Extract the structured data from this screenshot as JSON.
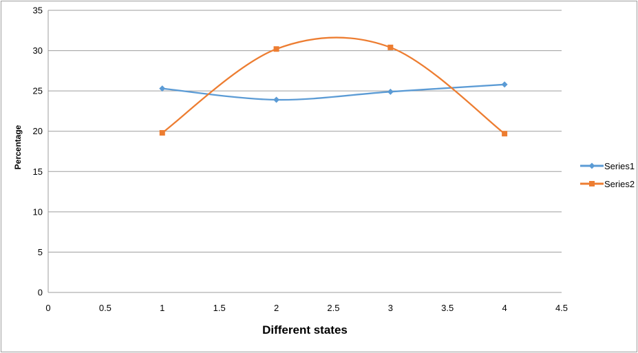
{
  "chart_data": {
    "type": "line",
    "title": "",
    "xlabel": "Different states",
    "ylabel": "Percentage",
    "xlim": [
      0,
      4.5
    ],
    "ylim": [
      0,
      35
    ],
    "xticks": [
      0,
      0.5,
      1,
      1.5,
      2,
      2.5,
      3,
      3.5,
      4,
      4.5
    ],
    "yticks": [
      0,
      5,
      10,
      15,
      20,
      25,
      30,
      35
    ],
    "grid": "horizontal",
    "smooth": true,
    "legend_position": "right",
    "grid_color": "#9d9d9d",
    "axis_color": "#9d9d9d",
    "border_color": "#9d9d9d",
    "series": [
      {
        "name": "Series1",
        "color": "#5B9BD5",
        "marker": "diamond",
        "x": [
          1,
          2,
          3,
          4
        ],
        "y": [
          25.3,
          23.9,
          24.9,
          25.8
        ]
      },
      {
        "name": "Series2",
        "color": "#ED7D31",
        "marker": "square",
        "x": [
          1,
          2,
          3,
          4
        ],
        "y": [
          19.8,
          30.2,
          30.4,
          19.7
        ]
      }
    ]
  }
}
